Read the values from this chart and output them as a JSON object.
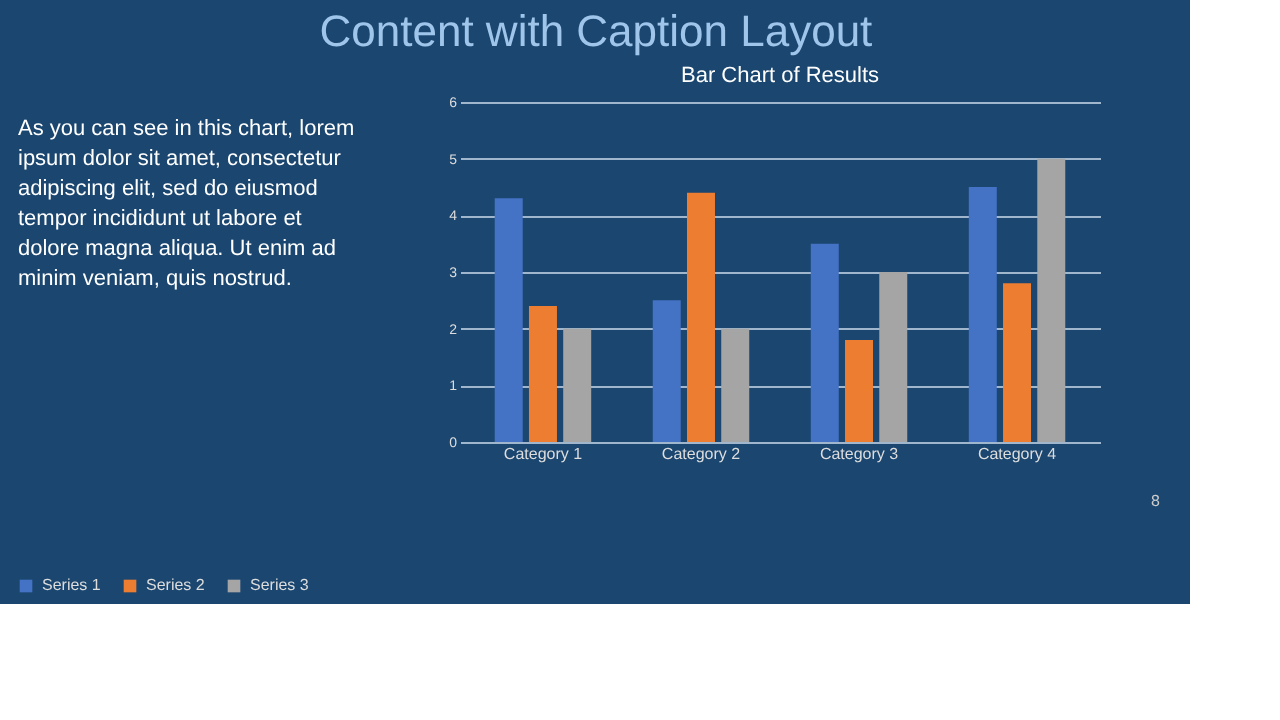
{
  "chart_data": {
    "type": "bar",
    "title": "Content with Caption Layout",
    "subtitle": "Bar Chart of Results",
    "annotations": [
      "As you can see in this chart, lorem ipsum dolor sit amet, consectetur adipiscing elit, sed do eiusmod tempor incididunt ut labore et dolore magna aliqua. Ut enim ad minim veniam, quis nostrud.",
      "8"
    ],
    "categories": [
      "Category 1",
      "Category 2",
      "Category 3",
      "Category 4"
    ],
    "series": [
      {
        "name": "Series 1",
        "color": "#4472c4",
        "values": [
          4.3,
          2.5,
          3.5,
          4.5
        ]
      },
      {
        "name": "Series 2",
        "color": "#ed7d31",
        "values": [
          2.4,
          4.4,
          1.8,
          2.8
        ]
      },
      {
        "name": "Series 3",
        "color": "#a5a5a5",
        "values": [
          2,
          2,
          3,
          5
        ]
      }
    ],
    "ylim": [
      0,
      6
    ],
    "yticks": [
      0,
      1,
      2,
      3,
      4,
      5,
      6
    ],
    "grid": "y",
    "legend": "bottom"
  }
}
